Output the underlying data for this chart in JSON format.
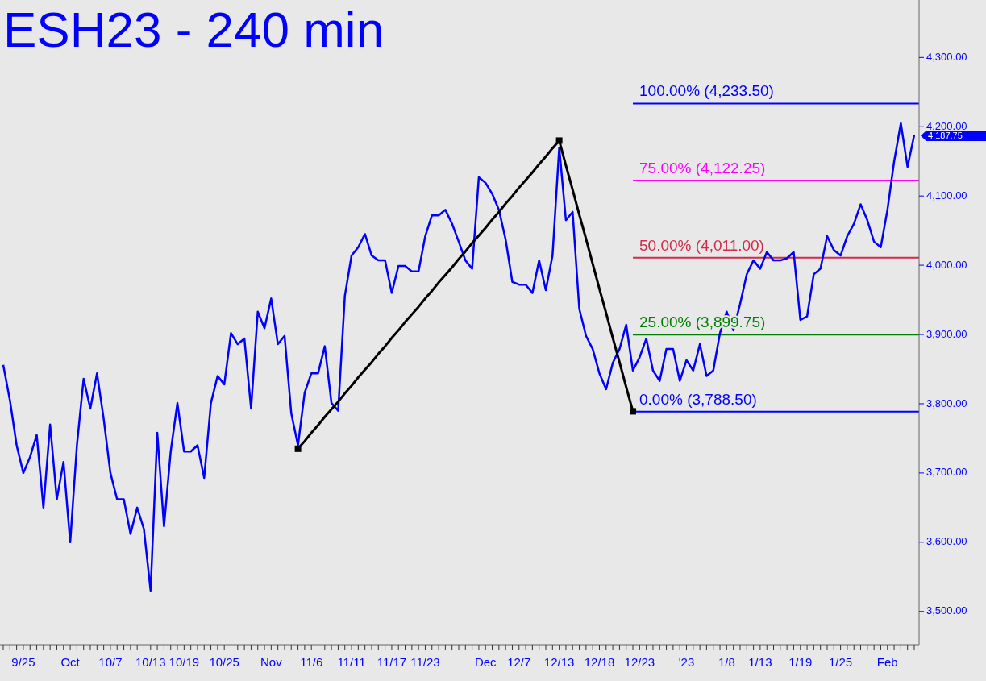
{
  "chart_data": {
    "type": "line",
    "title": "ESH23 - 240 min",
    "ylim": [
      3452,
      4383
    ],
    "categories": [
      null,
      null,
      null,
      "9/25",
      null,
      null,
      null,
      null,
      null,
      null,
      "Oct",
      null,
      null,
      null,
      null,
      null,
      "10/7",
      null,
      null,
      null,
      null,
      null,
      "10/13",
      null,
      null,
      null,
      null,
      "10/19",
      null,
      null,
      null,
      null,
      null,
      "10/25",
      null,
      null,
      null,
      null,
      null,
      null,
      "Nov",
      null,
      null,
      null,
      null,
      null,
      "11/6",
      null,
      null,
      null,
      null,
      null,
      "11/11",
      null,
      null,
      null,
      null,
      null,
      "11/17",
      null,
      null,
      null,
      null,
      "11/23",
      null,
      null,
      null,
      null,
      null,
      null,
      null,
      null,
      "Dec",
      null,
      null,
      null,
      null,
      "12/7",
      null,
      null,
      null,
      null,
      null,
      "12/13",
      null,
      null,
      null,
      null,
      null,
      "12/18",
      null,
      null,
      null,
      null,
      null,
      "12/23",
      null,
      null,
      null,
      null,
      null,
      null,
      "'23",
      null,
      null,
      null,
      null,
      null,
      "1/8",
      null,
      null,
      null,
      null,
      "1/13",
      null,
      null,
      null,
      null,
      null,
      "1/19",
      null,
      null,
      null,
      null,
      null,
      "1/25",
      null,
      null,
      null,
      null,
      null,
      null,
      "Feb",
      null,
      null,
      null,
      null
    ],
    "yticks": [
      {
        "value": 3500,
        "label": "3,500.00"
      },
      {
        "value": 3600,
        "label": "3,600.00"
      },
      {
        "value": 3700,
        "label": "3,700.00"
      },
      {
        "value": 3800,
        "label": "3,800.00"
      },
      {
        "value": 3900,
        "label": "3,900.00"
      },
      {
        "value": 4000,
        "label": "4,000.00"
      },
      {
        "value": 4100,
        "label": "4,100.00"
      },
      {
        "value": 4200,
        "label": "4,200.00"
      },
      {
        "value": 4300,
        "label": "4,300.00"
      }
    ],
    "series": [
      {
        "color": "#0000ff",
        "values": [
          3856,
          3805,
          3740,
          3700,
          3723,
          3755,
          3650,
          3770,
          3662,
          3716,
          3600,
          3740,
          3836,
          3793,
          3844,
          3778,
          3700,
          3662,
          3662,
          3612,
          3650,
          3619,
          3530,
          3758,
          3623,
          3731,
          3801,
          3731,
          3731,
          3740,
          3693,
          3801,
          3840,
          3828,
          3902,
          3886,
          3894,
          3793,
          3933,
          3909,
          3952,
          3886,
          3898,
          3786,
          3740,
          3816,
          3844,
          3844,
          3883,
          3801,
          3790,
          3956,
          4014,
          4026,
          4045,
          4014,
          4007,
          4007,
          3960,
          3999,
          3999,
          3991,
          3991,
          4042,
          4072,
          4072,
          4080,
          4060,
          4034,
          4007,
          3995,
          4127,
          4119,
          4103,
          4080,
          4037,
          3976,
          3972,
          3972,
          3960,
          4007,
          3964,
          4014,
          4170,
          4065,
          4077,
          3937,
          3898,
          3879,
          3844,
          3821,
          3859,
          3879,
          3914,
          3848,
          3867,
          3894,
          3848,
          3833,
          3879,
          3879,
          3833,
          3863,
          3848,
          3886,
          3840,
          3848,
          3902,
          3933,
          3906,
          3944,
          3987,
          4007,
          3995,
          4019,
          4007,
          4007,
          4010,
          4019,
          3921,
          3926,
          3987,
          3995,
          4042,
          4022,
          4014,
          4042,
          4060,
          4088,
          4065,
          4034,
          4026,
          4080,
          4150,
          4205,
          4142,
          4188
        ]
      },
      {
        "color": "#000000",
        "values": [
          null,
          null,
          null,
          null,
          null,
          null,
          null,
          null,
          null,
          null,
          null,
          null,
          null,
          null,
          null,
          null,
          null,
          null,
          null,
          null,
          null,
          null,
          null,
          null,
          null,
          null,
          null,
          null,
          null,
          null,
          null,
          null,
          null,
          null,
          null,
          null,
          null,
          null,
          null,
          null,
          null,
          null,
          null,
          null,
          3735,
          3746,
          3758,
          3769,
          3781,
          3792,
          3803,
          3815,
          3826,
          3838,
          3849,
          3860,
          3872,
          3883,
          3895,
          3906,
          3918,
          3929,
          3940,
          3952,
          3963,
          3975,
          3986,
          3997,
          4009,
          4020,
          4032,
          4043,
          4054,
          4066,
          4077,
          4089,
          4100,
          4112,
          4123,
          4134,
          4146,
          4157,
          4169,
          4180,
          4144,
          4109,
          4073,
          4038,
          4002,
          3966,
          3931,
          3895,
          3860,
          3824,
          3789,
          null,
          null,
          null,
          null,
          null,
          null,
          null,
          null,
          null,
          null,
          null,
          null,
          null,
          null,
          null,
          null,
          null,
          null,
          null,
          null,
          null,
          null,
          null,
          null,
          null,
          null,
          null,
          null,
          null,
          null,
          null,
          null,
          null,
          null,
          null,
          null,
          null,
          null,
          null,
          null,
          null,
          null
        ]
      }
    ],
    "ref_lines": [
      {
        "axis": "y",
        "value": 4233.5,
        "label": "100.00% (4,233.50)",
        "color": "#0000ff"
      },
      {
        "axis": "y",
        "value": 4122.25,
        "label": "75.00% (4,122.25)",
        "color": "#ff00ff"
      },
      {
        "axis": "y",
        "value": 4011,
        "label": "50.00% (4,011.00)",
        "color": "#d42a4a"
      },
      {
        "axis": "y",
        "value": 3899.75,
        "label": "25.00% (3,899.75)",
        "color": "#008000"
      },
      {
        "axis": "y",
        "value": 3788.5,
        "label": "0.00% (3,788.50)",
        "color": "#0000ff"
      }
    ],
    "annotations": [
      "4,187.75"
    ]
  }
}
